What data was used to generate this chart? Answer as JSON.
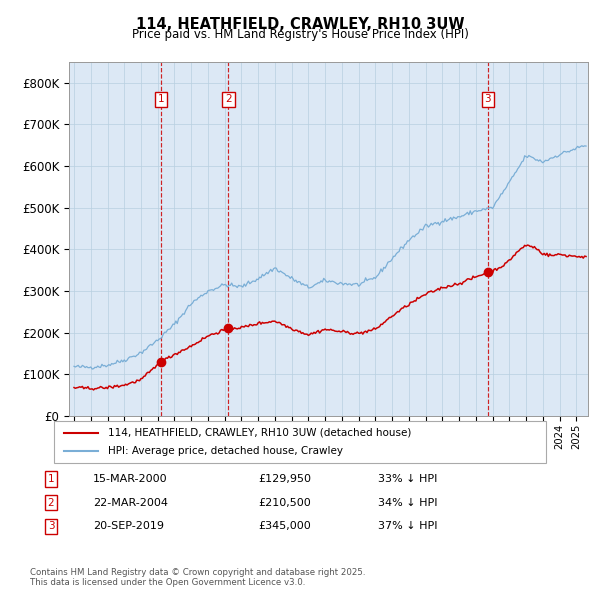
{
  "title": "114, HEATHFIELD, CRAWLEY, RH10 3UW",
  "subtitle": "Price paid vs. HM Land Registry's House Price Index (HPI)",
  "ylim": [
    0,
    850000
  ],
  "xlim_start": 1994.7,
  "xlim_end": 2025.7,
  "background_color": "#ffffff",
  "chart_bg_color": "#dce8f5",
  "grid_color": "#b8cfe0",
  "hpi_color": "#7aaed6",
  "price_color": "#cc0000",
  "purchases": [
    {
      "num": 1,
      "date_label": "15-MAR-2000",
      "date_x": 2000.21,
      "price": 129950,
      "pct": "33%"
    },
    {
      "num": 2,
      "date_label": "22-MAR-2004",
      "date_x": 2004.22,
      "price": 210500,
      "pct": "34%"
    },
    {
      "num": 3,
      "date_label": "20-SEP-2019",
      "date_x": 2019.72,
      "price": 345000,
      "pct": "37%"
    }
  ],
  "legend_line1": "114, HEATHFIELD, CRAWLEY, RH10 3UW (detached house)",
  "legend_line2": "HPI: Average price, detached house, Crawley",
  "footnote": "Contains HM Land Registry data © Crown copyright and database right 2025.\nThis data is licensed under the Open Government Licence v3.0.",
  "yticks": [
    0,
    100000,
    200000,
    300000,
    400000,
    500000,
    600000,
    700000,
    800000
  ],
  "ytick_labels": [
    "£0",
    "£100K",
    "£200K",
    "£300K",
    "£400K",
    "£500K",
    "£600K",
    "£700K",
    "£800K"
  ],
  "hpi_anchors_x": [
    1995,
    1996,
    1997,
    1998,
    1999,
    2000,
    2001,
    2002,
    2003,
    2004,
    2005,
    2006,
    2007,
    2008,
    2009,
    2010,
    2011,
    2012,
    2013,
    2014,
    2015,
    2016,
    2017,
    2018,
    2019,
    2020,
    2021,
    2022,
    2023,
    2024,
    2025.4
  ],
  "hpi_anchors_y": [
    118000,
    117000,
    122000,
    134000,
    152000,
    182000,
    220000,
    270000,
    300000,
    315000,
    310000,
    330000,
    355000,
    330000,
    308000,
    325000,
    318000,
    315000,
    332000,
    378000,
    422000,
    455000,
    468000,
    478000,
    492000,
    500000,
    560000,
    625000,
    610000,
    628000,
    648000
  ],
  "price_anchors_x": [
    1995,
    1996,
    1997,
    1998,
    1999,
    2000.21,
    2001,
    2002,
    2003,
    2004.22,
    2005,
    2006,
    2007,
    2008,
    2009,
    2010,
    2011,
    2012,
    2013,
    2014,
    2015,
    2016,
    2017,
    2018,
    2019.72,
    2020,
    2020.8,
    2021.5,
    2022,
    2022.5,
    2023,
    2023.5,
    2024,
    2024.5,
    2025.4
  ],
  "price_anchors_y": [
    68000,
    66000,
    68000,
    74000,
    87000,
    129950,
    148000,
    168000,
    192000,
    210500,
    212000,
    222000,
    228000,
    210000,
    195000,
    208000,
    202000,
    198000,
    208000,
    240000,
    268000,
    292000,
    308000,
    318000,
    345000,
    348000,
    365000,
    395000,
    410000,
    405000,
    390000,
    385000,
    388000,
    385000,
    382000
  ]
}
